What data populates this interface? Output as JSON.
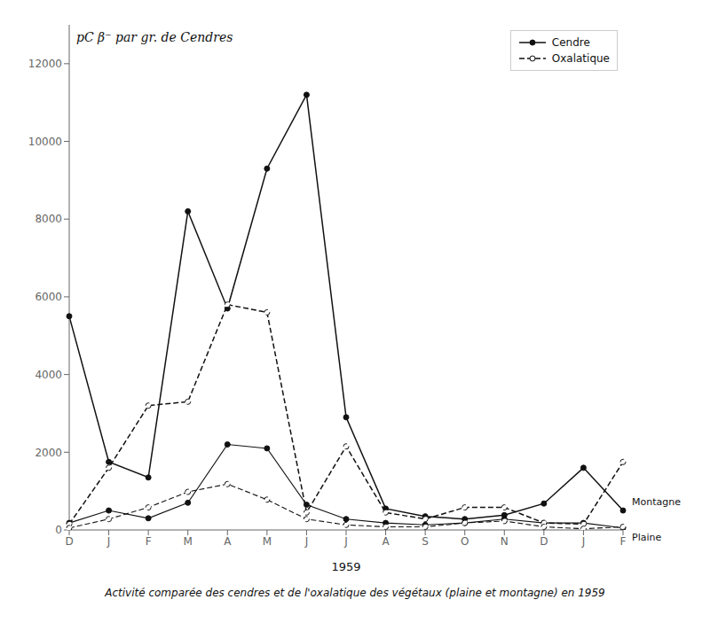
{
  "chart_data": {
    "type": "line",
    "title": "Activité comparée des cendres et de l'oxalatique des végétaux  (plaine et montagne) en 1959",
    "y_label": "pC β⁻ par gr. de Cendres",
    "x_label": "1959",
    "categories": [
      "D",
      "J",
      "F",
      "M",
      "A",
      "M",
      "J",
      "J",
      "A",
      "S",
      "O",
      "N",
      "D",
      "J",
      "F"
    ],
    "color": "#111111",
    "series": [
      {
        "name": "Cendre",
        "line_style": "solid",
        "marker": "filled_circle",
        "values": [
          5500,
          1750,
          1350,
          8200,
          5700,
          9300,
          11200,
          2900,
          550,
          350,
          280,
          380,
          680,
          1600,
          500
        ]
      },
      {
        "name": "Cendre",
        "line_style": "solid",
        "marker": "filled_circle",
        "values": [
          180,
          500,
          300,
          700,
          2200,
          2100,
          650,
          280,
          180,
          130,
          180,
          280,
          180,
          180,
          50
        ]
      },
      {
        "name": "Oxalatique",
        "line_style": "dashed",
        "marker": "open_circle",
        "values": [
          150,
          1600,
          3200,
          3300,
          5800,
          5600,
          450,
          2150,
          450,
          280,
          580,
          580,
          180,
          150,
          1750
        ]
      },
      {
        "name": "Oxalatique",
        "line_style": "dashed",
        "marker": "open_circle",
        "values": [
          50,
          280,
          580,
          980,
          1180,
          780,
          280,
          130,
          80,
          80,
          180,
          230,
          80,
          30,
          80
        ]
      }
    ],
    "annotations": [
      {
        "text": "Montagne",
        "x": 14,
        "y": 500
      },
      {
        "text": "Plaine",
        "x": 14,
        "y": 50
      }
    ],
    "ylim": [
      0,
      13000
    ],
    "yticks": [
      0,
      2000,
      4000,
      6000,
      8000,
      10000,
      12000
    ],
    "grid": false,
    "legend": "upper right"
  }
}
